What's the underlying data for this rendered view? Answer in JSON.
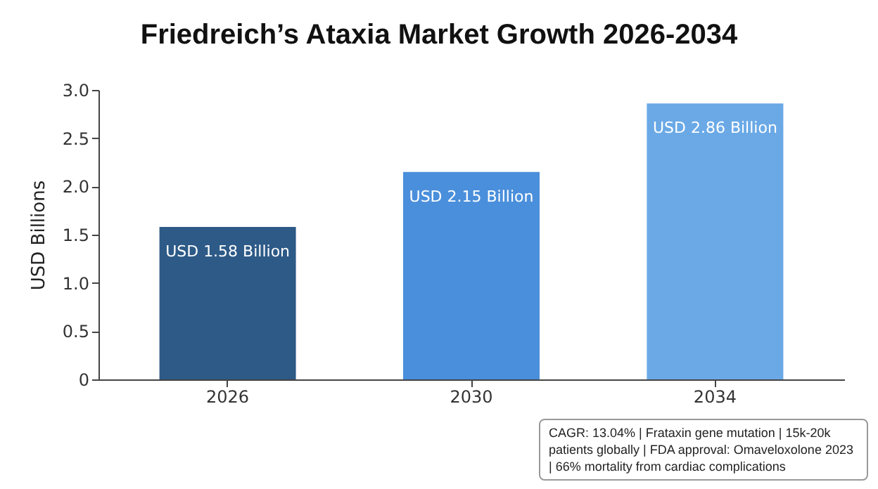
{
  "chart_data": {
    "type": "bar",
    "title": "Friedreich’s Ataxia Market Growth 2026-2034",
    "ylabel": "USD Billions",
    "categories": [
      "2026",
      "2030",
      "2034"
    ],
    "values": [
      1.58,
      2.15,
      2.86
    ],
    "colors": [
      "#2d5a87",
      "#4a8fdb",
      "#6aa9e6"
    ],
    "value_labels": [
      "USD 1.58 Billion",
      "USD 2.15 Billion",
      "USD 2.86 Billion"
    ],
    "ylim": [
      0,
      3
    ],
    "yticks": [
      0,
      0.5,
      {
        "value": 1,
        "label": "1.0"
      },
      1.5,
      {
        "value": 2,
        "label": "2.0"
      },
      2.5,
      {
        "value": 3,
        "label": "3.0"
      }
    ],
    "grid": false,
    "annotations": [
      "CAGR: 13.04% | Frataxin gene mutation | 15k-20k patients globally | FDA approval: Omaveloxolone 2023 | 66% mortality from cardiac complications"
    ]
  }
}
